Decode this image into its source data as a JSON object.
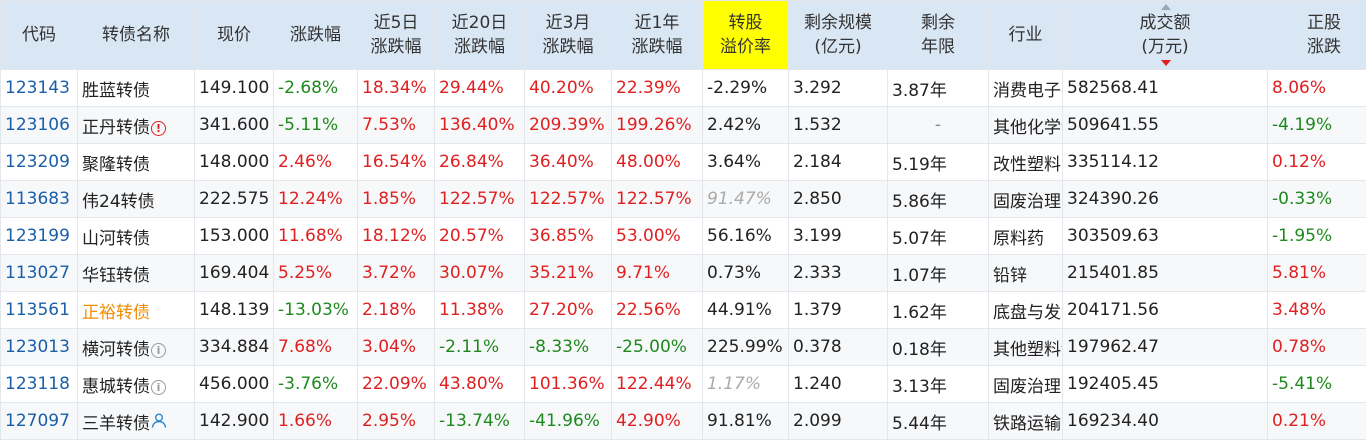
{
  "headers": {
    "code": "代码",
    "name": "转债名称",
    "price": "现价",
    "change": "涨跌幅",
    "d5_line1": "近5日",
    "d5_line2": "涨跌幅",
    "d20_line1": "近20日",
    "d20_line2": "涨跌幅",
    "m3_line1": "近3月",
    "m3_line2": "涨跌幅",
    "y1_line1": "近1年",
    "y1_line2": "涨跌幅",
    "premium_line1": "转股",
    "premium_line2": "溢价率",
    "remain_line1": "剩余规模",
    "remain_line2": "(亿元)",
    "years_line1": "剩余",
    "years_line2": "年限",
    "industry": "行业",
    "volume_line1": "成交额",
    "volume_line2": "(万元)",
    "stock_line1": "正股",
    "stock_line2": "涨跌"
  },
  "accent": {
    "header_bg": "#d9e6f3",
    "highlight_bg": "#ffff00",
    "up": "#e02020",
    "down": "#1e8a1e",
    "code": "#1a5fa8",
    "name_highlight": "#f08c00"
  },
  "rows": [
    {
      "code": "123143",
      "name": "胜蓝转债",
      "name_color": "",
      "icon": "",
      "price": "149.100",
      "change": "-2.68%",
      "change_dir": "down",
      "d5": "18.34%",
      "d5_dir": "up",
      "d20": "29.44%",
      "d20_dir": "up",
      "m3": "40.20%",
      "m3_dir": "up",
      "y1": "22.39%",
      "y1_dir": "up",
      "premium": "-2.29%",
      "premium_style": "",
      "remain": "3.292",
      "years": "3.87年",
      "industry": "消费电子零部件及组装",
      "volume": "582568.41",
      "stock": "8.06%",
      "stock_dir": "up"
    },
    {
      "code": "123106",
      "name": "正丹转债",
      "name_color": "",
      "icon": "warn-red",
      "price": "341.600",
      "change": "-5.11%",
      "change_dir": "down",
      "d5": "7.53%",
      "d5_dir": "up",
      "d20": "136.40%",
      "d20_dir": "up",
      "m3": "209.39%",
      "m3_dir": "up",
      "y1": "199.26%",
      "y1_dir": "up",
      "premium": "2.42%",
      "premium_style": "",
      "remain": "1.532",
      "years": "-",
      "industry": "其他化学制品",
      "volume": "509641.55",
      "stock": "-4.19%",
      "stock_dir": "down"
    },
    {
      "code": "123209",
      "name": "聚隆转债",
      "name_color": "",
      "icon": "",
      "price": "148.000",
      "change": "2.46%",
      "change_dir": "up",
      "d5": "16.54%",
      "d5_dir": "up",
      "d20": "26.84%",
      "d20_dir": "up",
      "m3": "36.40%",
      "m3_dir": "up",
      "y1": "48.00%",
      "y1_dir": "up",
      "premium": "3.64%",
      "premium_style": "",
      "remain": "2.184",
      "years": "5.19年",
      "industry": "改性塑料",
      "volume": "335114.12",
      "stock": "0.12%",
      "stock_dir": "up"
    },
    {
      "code": "113683",
      "name": "伟24转债",
      "name_color": "",
      "icon": "",
      "price": "222.575",
      "change": "12.24%",
      "change_dir": "up",
      "d5": "1.85%",
      "d5_dir": "up",
      "d20": "122.57%",
      "d20_dir": "up",
      "m3": "122.57%",
      "m3_dir": "up",
      "y1": "122.57%",
      "y1_dir": "up",
      "premium": "91.47%",
      "premium_style": "gray-italic",
      "remain": "2.850",
      "years": "5.86年",
      "industry": "固废治理",
      "volume": "324390.26",
      "stock": "-0.33%",
      "stock_dir": "down"
    },
    {
      "code": "123199",
      "name": "山河转债",
      "name_color": "",
      "icon": "",
      "price": "153.000",
      "change": "11.68%",
      "change_dir": "up",
      "d5": "18.12%",
      "d5_dir": "up",
      "d20": "20.57%",
      "d20_dir": "up",
      "m3": "36.85%",
      "m3_dir": "up",
      "y1": "53.00%",
      "y1_dir": "up",
      "premium": "56.16%",
      "premium_style": "",
      "remain": "3.199",
      "years": "5.07年",
      "industry": "原料药",
      "volume": "303509.63",
      "stock": "-1.95%",
      "stock_dir": "down"
    },
    {
      "code": "113027",
      "name": "华钰转债",
      "name_color": "",
      "icon": "",
      "price": "169.404",
      "change": "5.25%",
      "change_dir": "up",
      "d5": "3.72%",
      "d5_dir": "up",
      "d20": "30.07%",
      "d20_dir": "up",
      "m3": "35.21%",
      "m3_dir": "up",
      "y1": "9.71%",
      "y1_dir": "up",
      "premium": "0.73%",
      "premium_style": "",
      "remain": "2.333",
      "years": "1.07年",
      "industry": "铅锌",
      "volume": "215401.85",
      "stock": "5.81%",
      "stock_dir": "up"
    },
    {
      "code": "113561",
      "name": "正裕转债",
      "name_color": "orange",
      "icon": "",
      "price": "148.139",
      "change": "-13.03%",
      "change_dir": "down",
      "d5": "2.18%",
      "d5_dir": "up",
      "d20": "11.38%",
      "d20_dir": "up",
      "m3": "27.20%",
      "m3_dir": "up",
      "y1": "22.56%",
      "y1_dir": "up",
      "premium": "44.91%",
      "premium_style": "",
      "remain": "1.379",
      "years": "1.62年",
      "industry": "底盘与发动机系统",
      "volume": "204171.56",
      "stock": "3.48%",
      "stock_dir": "up"
    },
    {
      "code": "123013",
      "name": "横河转债",
      "name_color": "",
      "icon": "info-gray",
      "price": "334.884",
      "change": "7.68%",
      "change_dir": "up",
      "d5": "3.04%",
      "d5_dir": "up",
      "d20": "-2.11%",
      "d20_dir": "down",
      "m3": "-8.33%",
      "m3_dir": "down",
      "y1": "-25.00%",
      "y1_dir": "down",
      "premium": "225.99%",
      "premium_style": "",
      "remain": "0.378",
      "years": "0.18年",
      "industry": "其他塑料制品",
      "volume": "197962.47",
      "stock": "0.78%",
      "stock_dir": "up"
    },
    {
      "code": "123118",
      "name": "惠城转债",
      "name_color": "",
      "icon": "info-gray",
      "price": "456.000",
      "change": "-3.76%",
      "change_dir": "down",
      "d5": "22.09%",
      "d5_dir": "up",
      "d20": "43.80%",
      "d20_dir": "up",
      "m3": "101.36%",
      "m3_dir": "up",
      "y1": "122.44%",
      "y1_dir": "up",
      "premium": "1.17%",
      "premium_style": "gray-italic",
      "remain": "1.240",
      "years": "3.13年",
      "industry": "固废治理",
      "volume": "192405.45",
      "stock": "-5.41%",
      "stock_dir": "down"
    },
    {
      "code": "127097",
      "name": "三羊转债",
      "name_color": "",
      "icon": "user",
      "price": "142.900",
      "change": "1.66%",
      "change_dir": "up",
      "d5": "2.95%",
      "d5_dir": "up",
      "d20": "-13.74%",
      "d20_dir": "down",
      "m3": "-41.96%",
      "m3_dir": "down",
      "y1": "42.90%",
      "y1_dir": "up",
      "premium": "91.81%",
      "premium_style": "",
      "remain": "2.099",
      "years": "5.44年",
      "industry": "铁路运输",
      "volume": "169234.40",
      "stock": "0.21%",
      "stock_dir": "up"
    }
  ]
}
